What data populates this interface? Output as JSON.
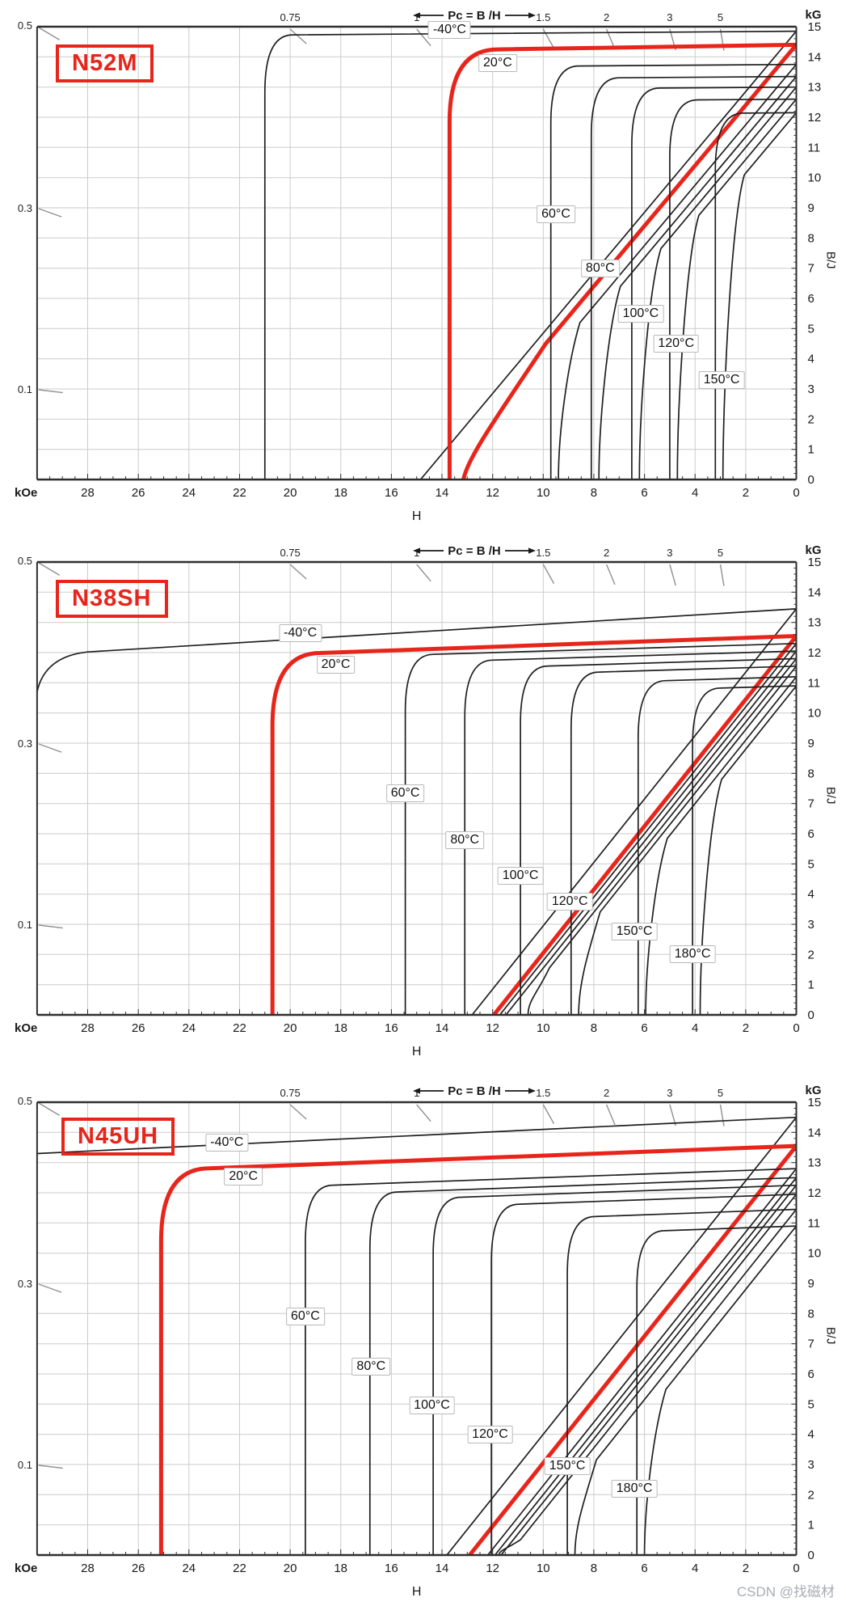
{
  "watermark": {
    "text": "CSDN @找磁材",
    "color": "#a8adb3"
  },
  "colors": {
    "red_accent": "#e8251b",
    "curve_black": "#1f1f1f",
    "grid": "#cbcbcb",
    "border": "#2e2e2e",
    "pc_mark_gray": "#909090",
    "axis_text": "#1a1a1a"
  },
  "axes": {
    "x_title": "H",
    "x_unit": "kOe",
    "x_min": 0,
    "x_max": 30,
    "x_major_step": 2,
    "x_minor_step": 0.5,
    "x_reversed": true,
    "y_title": "B/J",
    "y_unit": "kG",
    "y_min": 0,
    "y_max": 15,
    "y_major_step": 1,
    "y_minor_step": 0.2,
    "pc_title": "Pc = B /H",
    "pc_top_marks": [
      {
        "label": "0.75",
        "pc": 0.75
      },
      {
        "label": "1",
        "pc": 1
      },
      {
        "label": "1.5",
        "pc": 1.5
      },
      {
        "label": "2",
        "pc": 2
      },
      {
        "label": "3",
        "pc": 3
      },
      {
        "label": "5",
        "pc": 5
      }
    ],
    "pc_left_marks": [
      {
        "label": "0.5",
        "pc": 0.5
      },
      {
        "label": "0.3",
        "pc": 0.3
      },
      {
        "label": "0.1",
        "pc": 0.1
      }
    ]
  },
  "chart_data": [
    {
      "type": "line",
      "title": "N52M",
      "xlabel": "H (kOe)",
      "ylabel": "B/J (kG)",
      "xlim": [
        30,
        0
      ],
      "ylim": [
        0,
        15
      ],
      "mu": 1.0,
      "series": [
        {
          "name": "-40°C",
          "color": "black",
          "Br": 14.85,
          "HcJ": 21.0,
          "HcB": 14.85,
          "j_slope": 0.006,
          "label_at": [
            13.7,
            14.9
          ]
        },
        {
          "name": "20°C",
          "color": "red",
          "Br": 14.4,
          "HcJ": 13.7,
          "HcB": 13.15,
          "j_slope": 0.013,
          "label_at": [
            11.8,
            13.8
          ],
          "b_bend": {
            "H0": 9.9,
            "B0": 4.5,
            "H1": 13.15
          }
        },
        {
          "name": "60°C",
          "color": "black",
          "Br": 13.75,
          "HcJ": 9.7,
          "HcB": 9.4,
          "j_slope": 0.006,
          "label_at": [
            9.5,
            8.8
          ]
        },
        {
          "name": "80°C",
          "color": "black",
          "Br": 13.35,
          "HcJ": 8.1,
          "HcB": 7.8,
          "j_slope": 0.006,
          "label_at": [
            7.75,
            7.0
          ]
        },
        {
          "name": "100°C",
          "color": "black",
          "Br": 13.0,
          "HcJ": 6.5,
          "HcB": 6.2,
          "j_slope": 0.006,
          "label_at": [
            6.15,
            5.5
          ]
        },
        {
          "name": "120°C",
          "color": "black",
          "Br": 12.6,
          "HcJ": 5.0,
          "HcB": 4.7,
          "j_slope": 0.006,
          "label_at": [
            4.75,
            4.5
          ]
        },
        {
          "name": "150°C",
          "color": "black",
          "Br": 12.15,
          "HcJ": 3.2,
          "HcB": 2.9,
          "j_slope": 0.006,
          "label_at": [
            2.95,
            3.3
          ]
        }
      ]
    },
    {
      "type": "line",
      "title": "N38SH",
      "xlabel": "H (kOe)",
      "ylabel": "B/J (kG)",
      "xlim": [
        30,
        0
      ],
      "ylim": [
        0,
        15
      ],
      "mu": 1.05,
      "series": [
        {
          "name": "-40°C",
          "color": "black",
          "Br": 13.45,
          "HcJ": 30.5,
          "HcB": 12.8,
          "j_slope": 0.051,
          "label_at": [
            19.6,
            12.65
          ],
          "edge_knee_H": 28.0,
          "edge_drop_B": 10.7
        },
        {
          "name": "20°C",
          "color": "red",
          "Br": 12.55,
          "HcJ": 20.7,
          "HcB": 11.95,
          "j_slope": 0.03,
          "label_at": [
            18.2,
            11.6
          ]
        },
        {
          "name": "60°C",
          "color": "black",
          "Br": 12.3,
          "HcJ": 15.45,
          "HcB": 11.7,
          "j_slope": 0.025,
          "label_at": [
            15.45,
            7.35
          ]
        },
        {
          "name": "80°C",
          "color": "black",
          "Br": 12.05,
          "HcJ": 13.1,
          "HcB": 11.5,
          "j_slope": 0.025,
          "label_at": [
            13.1,
            5.8
          ]
        },
        {
          "name": "100°C",
          "color": "black",
          "Br": 11.8,
          "HcJ": 10.9,
          "HcB": 10.6,
          "j_slope": 0.025,
          "label_at": [
            10.9,
            4.6
          ]
        },
        {
          "name": "120°C",
          "color": "black",
          "Br": 11.55,
          "HcJ": 8.9,
          "HcB": 8.6,
          "j_slope": 0.025,
          "label_at": [
            8.95,
            3.75
          ]
        },
        {
          "name": "150°C",
          "color": "black",
          "Br": 11.2,
          "HcJ": 6.25,
          "HcB": 5.95,
          "j_slope": 0.025,
          "label_at": [
            6.4,
            2.75
          ]
        },
        {
          "name": "180°C",
          "color": "black",
          "Br": 10.9,
          "HcJ": 4.1,
          "HcB": 3.8,
          "j_slope": 0.025,
          "label_at": [
            4.1,
            2.0
          ]
        }
      ]
    },
    {
      "type": "line",
      "title": "N45UH",
      "xlabel": "H (kOe)",
      "ylabel": "B/J (kG)",
      "xlim": [
        30,
        0
      ],
      "ylim": [
        0,
        15
      ],
      "mu": 1.05,
      "series": [
        {
          "name": "-40°C",
          "color": "black",
          "Br": 14.5,
          "HcJ": 32.0,
          "HcB": 13.8,
          "j_slope": 0.04,
          "label_at": [
            22.5,
            13.65
          ]
        },
        {
          "name": "20°C",
          "color": "red",
          "Br": 13.55,
          "HcJ": 25.1,
          "HcB": 12.9,
          "j_slope": 0.032,
          "label_at": [
            21.85,
            12.55
          ]
        },
        {
          "name": "60°C",
          "color": "black",
          "Br": 12.8,
          "HcJ": 19.4,
          "HcB": 12.2,
          "j_slope": 0.03,
          "label_at": [
            19.4,
            7.9
          ]
        },
        {
          "name": "80°C",
          "color": "black",
          "Br": 12.5,
          "HcJ": 16.85,
          "HcB": 11.9,
          "j_slope": 0.03,
          "label_at": [
            16.8,
            6.25
          ]
        },
        {
          "name": "100°C",
          "color": "black",
          "Br": 12.25,
          "HcJ": 14.35,
          "HcB": 11.65,
          "j_slope": 0.03,
          "label_at": [
            14.4,
            4.95
          ]
        },
        {
          "name": "120°C",
          "color": "black",
          "Br": 11.95,
          "HcJ": 12.05,
          "HcB": 11.75,
          "j_slope": 0.03,
          "label_at": [
            12.1,
            4.0
          ]
        },
        {
          "name": "150°C",
          "color": "black",
          "Br": 11.45,
          "HcJ": 9.05,
          "HcB": 8.75,
          "j_slope": 0.03,
          "label_at": [
            9.05,
            2.95
          ]
        },
        {
          "name": "180°C",
          "color": "black",
          "Br": 10.9,
          "HcJ": 6.3,
          "HcB": 6.0,
          "j_slope": 0.03,
          "label_at": [
            6.4,
            2.2
          ]
        }
      ]
    }
  ]
}
